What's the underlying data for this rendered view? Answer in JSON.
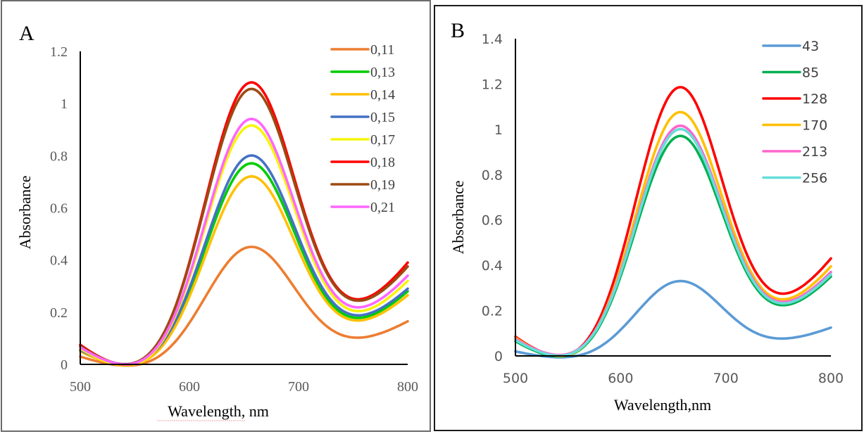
{
  "chart_data": [
    {
      "type": "line",
      "panel_label": "A",
      "title": "",
      "xlabel": "Wavelength, nm",
      "ylabel": "Absorbance",
      "xlim": [
        500,
        800
      ],
      "ylim": [
        0,
        1.2
      ],
      "x_ticks": [
        "500",
        "600",
        "700",
        "800"
      ],
      "y_ticks": [
        "0",
        "0.2",
        "0.4",
        "0.6",
        "0.8",
        "1",
        "1.2"
      ],
      "grid": false,
      "legend_position": "top-right",
      "peak_wavelength": 655,
      "minimum_wavelength": 755,
      "series": [
        {
          "name": "0,11",
          "color": "#ED7D31",
          "start": 0.03,
          "peak": 0.45,
          "minimum": 0.1,
          "end": 0.165
        },
        {
          "name": "0,13",
          "color": "#00CC00",
          "start": 0.055,
          "peak": 0.77,
          "minimum": 0.175,
          "end": 0.28
        },
        {
          "name": "0,14",
          "color": "#FFC000",
          "start": 0.05,
          "peak": 0.72,
          "minimum": 0.165,
          "end": 0.265
        },
        {
          "name": "0,15",
          "color": "#4472C4",
          "start": 0.055,
          "peak": 0.8,
          "minimum": 0.185,
          "end": 0.29
        },
        {
          "name": "0,17",
          "color": "#F5F50A",
          "start": 0.06,
          "peak": 0.915,
          "minimum": 0.2,
          "end": 0.32
        },
        {
          "name": "0,18",
          "color": "#FF0000",
          "start": 0.075,
          "peak": 1.08,
          "minimum": 0.245,
          "end": 0.39
        },
        {
          "name": "0,19",
          "color": "#9C4A12",
          "start": 0.07,
          "peak": 1.055,
          "minimum": 0.24,
          "end": 0.375
        },
        {
          "name": "0,21",
          "color": "#FF66FF",
          "start": 0.065,
          "peak": 0.94,
          "minimum": 0.215,
          "end": 0.34
        }
      ]
    },
    {
      "type": "line",
      "panel_label": "B",
      "title": "",
      "xlabel": "Wavelength,nm",
      "ylabel": "Absorbance",
      "xlim": [
        500,
        800
      ],
      "ylim": [
        0,
        1.4
      ],
      "x_ticks": [
        "500",
        "600",
        "700",
        "800"
      ],
      "y_ticks": [
        "0",
        "0.2",
        "0.4",
        "0.6",
        "0.8",
        "1",
        "1.2",
        "1.4"
      ],
      "grid": false,
      "legend_position": "top-right",
      "peak_wavelength": 655,
      "minimum_wavelength": 755,
      "series": [
        {
          "name": "43",
          "color": "#5B9BD5",
          "start": 0.02,
          "peak": 0.33,
          "minimum": 0.075,
          "end": 0.125
        },
        {
          "name": "85",
          "color": "#00B050",
          "start": 0.065,
          "peak": 0.97,
          "minimum": 0.22,
          "end": 0.35
        },
        {
          "name": "128",
          "color": "#FF0000",
          "start": 0.085,
          "peak": 1.185,
          "minimum": 0.27,
          "end": 0.43
        },
        {
          "name": "170",
          "color": "#FFC000",
          "start": 0.08,
          "peak": 1.075,
          "minimum": 0.245,
          "end": 0.395
        },
        {
          "name": "213",
          "color": "#FF66CC",
          "start": 0.075,
          "peak": 1.015,
          "minimum": 0.235,
          "end": 0.37
        },
        {
          "name": "256",
          "color": "#66DDD9",
          "start": 0.07,
          "peak": 1.0,
          "minimum": 0.228,
          "end": 0.36
        }
      ]
    }
  ]
}
